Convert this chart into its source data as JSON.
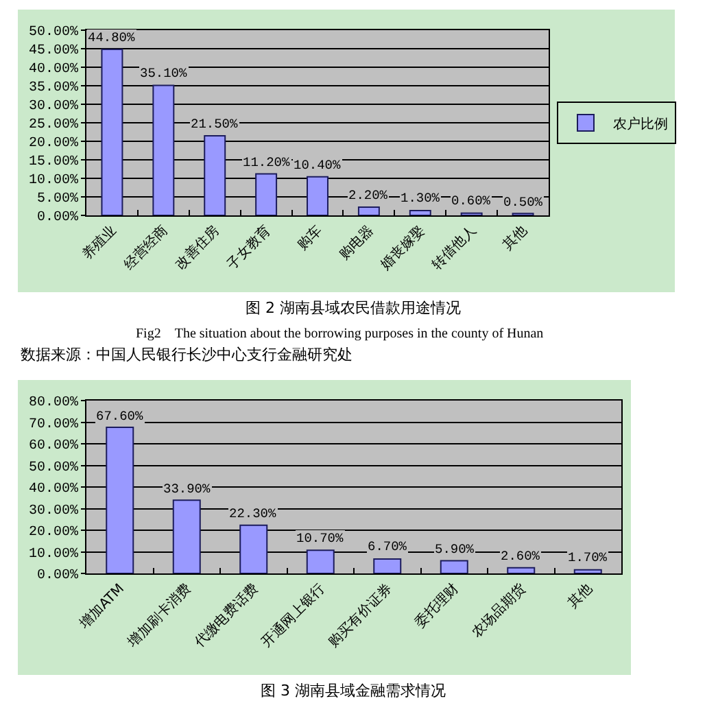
{
  "chart_data": [
    {
      "type": "bar",
      "title": "图 2 湖南县域农民借款用途情况",
      "subtitle": "Fig2　The situation about the borrowing purposes in the county of Hunan",
      "annotations": [
        "数据来源：中国人民银行长沙中心支行金融研究处"
      ],
      "categories": [
        "养殖业",
        "经营经商",
        "改善住房",
        "子女教育",
        "购车",
        "购电器",
        "婚丧嫁娶",
        "转借他人",
        "其他"
      ],
      "series": [
        {
          "name": "农户比例",
          "color": "#9999ff",
          "values": [
            44.8,
            35.1,
            21.5,
            11.2,
            10.4,
            2.2,
            1.3,
            0.6,
            0.5
          ],
          "value_labels": [
            "44.80%",
            "35.10%",
            "21.50%",
            "11.20%",
            "10.40%",
            "2.20%",
            "1.30%",
            "0.60%",
            "0.50%"
          ]
        }
      ],
      "ylim": [
        0,
        50
      ],
      "yticks": [
        {
          "value": 0,
          "label": "0.00%"
        },
        {
          "value": 5,
          "label": "5.00%"
        },
        {
          "value": 10,
          "label": "10.00%"
        },
        {
          "value": 15,
          "label": "15.00%"
        },
        {
          "value": 20,
          "label": "20.00%"
        },
        {
          "value": 25,
          "label": "25.00%"
        },
        {
          "value": 30,
          "label": "30.00%"
        },
        {
          "value": 35,
          "label": "35.00%"
        },
        {
          "value": 40,
          "label": "40.00%"
        },
        {
          "value": 45,
          "label": "45.00%"
        },
        {
          "value": 50,
          "label": "50.00%"
        }
      ],
      "grid": "y",
      "legend": "right"
    },
    {
      "type": "bar",
      "title": "图 3 湖南县域金融需求情况",
      "categories": [
        "增加ATM",
        "增加刷卡消费",
        "代缴电费话费",
        "开通网上银行",
        "购买有价证券",
        "委托理财",
        "农场品期货",
        "其他"
      ],
      "series": [
        {
          "color": "#9999ff",
          "values": [
            67.6,
            33.9,
            22.3,
            10.7,
            6.7,
            5.9,
            2.6,
            1.7
          ],
          "value_labels": [
            "67.60%",
            "33.90%",
            "22.30%",
            "10.70%",
            "6.70%",
            "5.90%",
            "2.60%",
            "1.70%"
          ]
        }
      ],
      "ylim": [
        0,
        80
      ],
      "yticks": [
        {
          "value": 0,
          "label": "0.00%"
        },
        {
          "value": 10,
          "label": "10.00%"
        },
        {
          "value": 20,
          "label": "20.00%"
        },
        {
          "value": 30,
          "label": "30.00%"
        },
        {
          "value": 40,
          "label": "40.00%"
        },
        {
          "value": 50,
          "label": "50.00%"
        },
        {
          "value": 60,
          "label": "60.00%"
        },
        {
          "value": 70,
          "label": "70.00%"
        },
        {
          "value": 80,
          "label": "80.00%"
        }
      ],
      "grid": "y"
    }
  ]
}
